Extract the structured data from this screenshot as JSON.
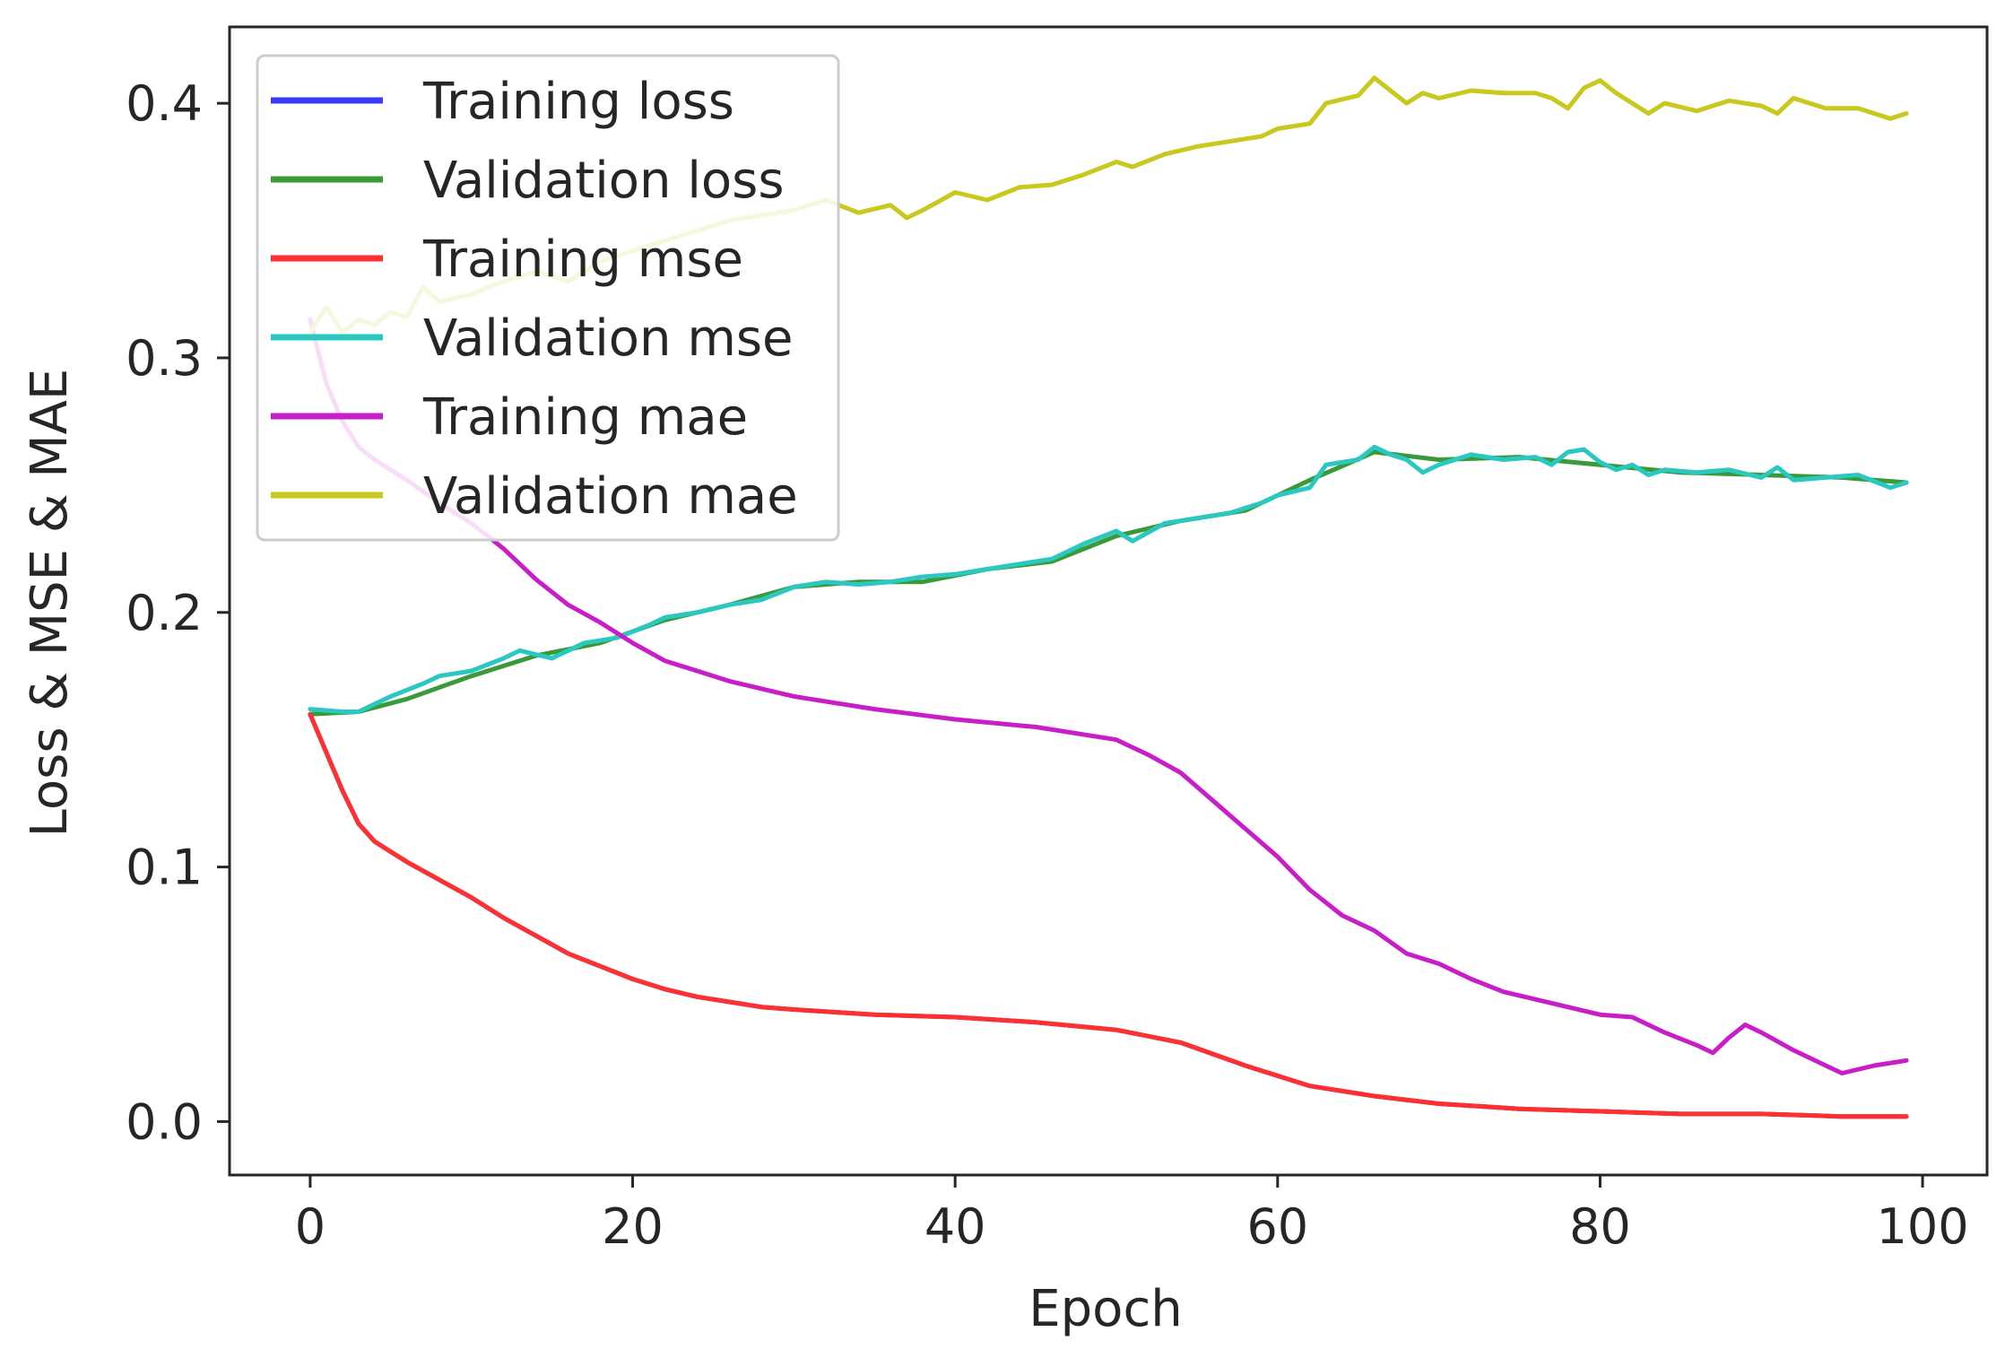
{
  "chart_data": {
    "type": "line",
    "title": "",
    "xlabel": "Epoch",
    "ylabel": "Loss & MSE & MAE",
    "xlim": [
      -5,
      104
    ],
    "ylim": [
      -0.021,
      0.43
    ],
    "xticks": [
      0,
      20,
      40,
      60,
      80,
      100
    ],
    "xtick_labels": [
      "0",
      "20",
      "40",
      "60",
      "80",
      "100"
    ],
    "yticks": [
      0.0,
      0.1,
      0.2,
      0.3,
      0.4
    ],
    "ytick_labels": [
      "0.0",
      "0.1",
      "0.2",
      "0.3",
      "0.4"
    ],
    "grid": false,
    "legend_position": "top-left",
    "series": [
      {
        "name": "Training loss",
        "color": "#3a3aff",
        "x": [
          0,
          1,
          2,
          3,
          4,
          5,
          6,
          8,
          10,
          12,
          14,
          16,
          18,
          20,
          22,
          24,
          26,
          28,
          30,
          35,
          40,
          45,
          50,
          54,
          58,
          62,
          66,
          70,
          75,
          80,
          85,
          90,
          95,
          99
        ],
        "y": [
          0.16,
          0.145,
          0.13,
          0.117,
          0.11,
          0.106,
          0.102,
          0.095,
          0.088,
          0.08,
          0.073,
          0.066,
          0.061,
          0.056,
          0.052,
          0.049,
          0.047,
          0.045,
          0.044,
          0.042,
          0.041,
          0.039,
          0.036,
          0.031,
          0.022,
          0.014,
          0.01,
          0.007,
          0.005,
          0.004,
          0.003,
          0.003,
          0.002,
          0.002
        ]
      },
      {
        "name": "Validation loss",
        "color": "#3a9a3a",
        "x": [
          0,
          3,
          6,
          10,
          14,
          18,
          22,
          26,
          30,
          34,
          38,
          42,
          46,
          50,
          54,
          58,
          62,
          66,
          70,
          75,
          80,
          85,
          90,
          95,
          99
        ],
        "y": [
          0.16,
          0.161,
          0.166,
          0.175,
          0.183,
          0.188,
          0.197,
          0.203,
          0.21,
          0.212,
          0.212,
          0.217,
          0.22,
          0.23,
          0.236,
          0.24,
          0.252,
          0.263,
          0.26,
          0.261,
          0.258,
          0.255,
          0.254,
          0.253,
          0.251
        ]
      },
      {
        "name": "Training mse",
        "color": "#ff3030",
        "x": [
          0,
          1,
          2,
          3,
          4,
          5,
          6,
          8,
          10,
          12,
          14,
          16,
          18,
          20,
          22,
          24,
          26,
          28,
          30,
          35,
          40,
          45,
          50,
          54,
          58,
          62,
          66,
          70,
          75,
          80,
          85,
          90,
          95,
          99
        ],
        "y": [
          0.16,
          0.145,
          0.13,
          0.117,
          0.11,
          0.106,
          0.102,
          0.095,
          0.088,
          0.08,
          0.073,
          0.066,
          0.061,
          0.056,
          0.052,
          0.049,
          0.047,
          0.045,
          0.044,
          0.042,
          0.041,
          0.039,
          0.036,
          0.031,
          0.022,
          0.014,
          0.01,
          0.007,
          0.005,
          0.004,
          0.003,
          0.003,
          0.002,
          0.002
        ]
      },
      {
        "name": "Validation mse",
        "color": "#2ac8c0",
        "x": [
          0,
          2,
          3,
          5,
          7,
          8,
          10,
          12,
          13,
          15,
          17,
          19,
          21,
          22,
          24,
          26,
          28,
          30,
          32,
          34,
          36,
          38,
          40,
          42,
          44,
          46,
          48,
          50,
          51,
          53,
          55,
          57,
          59,
          60,
          62,
          63,
          65,
          66,
          67,
          68,
          69,
          70,
          72,
          74,
          76,
          77,
          78,
          79,
          80,
          81,
          82,
          83,
          84,
          86,
          88,
          90,
          91,
          92,
          94,
          96,
          98,
          99
        ],
        "y": [
          0.162,
          0.161,
          0.161,
          0.167,
          0.172,
          0.175,
          0.177,
          0.182,
          0.185,
          0.182,
          0.188,
          0.19,
          0.195,
          0.198,
          0.2,
          0.203,
          0.205,
          0.21,
          0.212,
          0.211,
          0.212,
          0.214,
          0.215,
          0.217,
          0.219,
          0.221,
          0.227,
          0.232,
          0.228,
          0.235,
          0.237,
          0.239,
          0.243,
          0.246,
          0.249,
          0.258,
          0.26,
          0.265,
          0.262,
          0.26,
          0.255,
          0.258,
          0.262,
          0.26,
          0.261,
          0.258,
          0.263,
          0.264,
          0.259,
          0.256,
          0.258,
          0.254,
          0.256,
          0.255,
          0.256,
          0.253,
          0.257,
          0.252,
          0.253,
          0.254,
          0.249,
          0.251
        ]
      },
      {
        "name": "Training mae",
        "color": "#c81ec8",
        "x": [
          0,
          1,
          2,
          3,
          4,
          6,
          8,
          10,
          12,
          14,
          16,
          18,
          20,
          22,
          24,
          26,
          28,
          30,
          35,
          40,
          45,
          50,
          52,
          54,
          56,
          58,
          60,
          62,
          64,
          66,
          68,
          70,
          72,
          74,
          76,
          78,
          80,
          82,
          84,
          86,
          87,
          88,
          89,
          90,
          92,
          94,
          95,
          97,
          99
        ],
        "y": [
          0.315,
          0.29,
          0.275,
          0.265,
          0.26,
          0.252,
          0.243,
          0.235,
          0.225,
          0.213,
          0.203,
          0.196,
          0.188,
          0.181,
          0.177,
          0.173,
          0.17,
          0.167,
          0.162,
          0.158,
          0.155,
          0.15,
          0.144,
          0.137,
          0.126,
          0.115,
          0.104,
          0.091,
          0.081,
          0.075,
          0.066,
          0.062,
          0.056,
          0.051,
          0.048,
          0.045,
          0.042,
          0.041,
          0.035,
          0.03,
          0.027,
          0.033,
          0.038,
          0.035,
          0.028,
          0.022,
          0.019,
          0.022,
          0.024
        ]
      },
      {
        "name": "Validation mae",
        "color": "#c8c81e",
        "x": [
          0,
          1,
          2,
          3,
          4,
          5,
          6,
          7,
          8,
          10,
          12,
          14,
          16,
          18,
          20,
          22,
          24,
          26,
          28,
          30,
          32,
          34,
          36,
          37,
          38,
          40,
          42,
          44,
          46,
          48,
          50,
          51,
          53,
          55,
          57,
          59,
          60,
          62,
          63,
          65,
          66,
          67,
          68,
          69,
          70,
          72,
          74,
          76,
          77,
          78,
          79,
          80,
          81,
          82,
          83,
          84,
          86,
          88,
          90,
          91,
          92,
          94,
          96,
          98,
          99
        ],
        "y": [
          0.31,
          0.32,
          0.31,
          0.315,
          0.313,
          0.318,
          0.316,
          0.328,
          0.322,
          0.325,
          0.33,
          0.334,
          0.33,
          0.338,
          0.342,
          0.346,
          0.35,
          0.354,
          0.356,
          0.358,
          0.362,
          0.357,
          0.36,
          0.355,
          0.358,
          0.365,
          0.362,
          0.367,
          0.368,
          0.372,
          0.377,
          0.375,
          0.38,
          0.383,
          0.385,
          0.387,
          0.39,
          0.392,
          0.4,
          0.403,
          0.41,
          0.405,
          0.4,
          0.404,
          0.402,
          0.405,
          0.404,
          0.404,
          0.402,
          0.398,
          0.406,
          0.409,
          0.404,
          0.4,
          0.396,
          0.4,
          0.397,
          0.401,
          0.399,
          0.396,
          0.402,
          0.398,
          0.398,
          0.394,
          0.396
        ]
      }
    ]
  }
}
